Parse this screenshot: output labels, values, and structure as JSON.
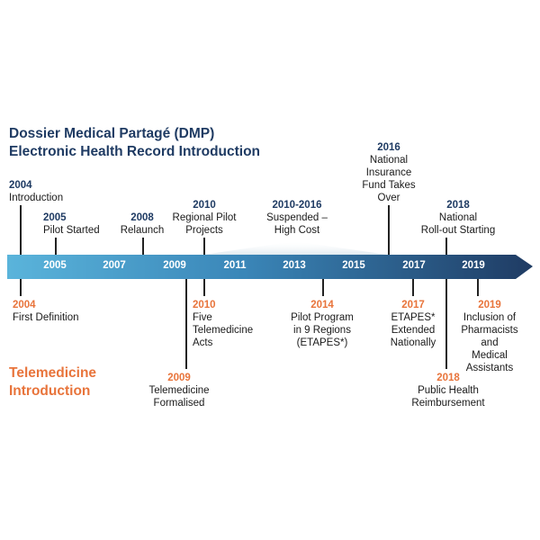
{
  "title": {
    "line1": "Dossier Medical Partagé (DMP)",
    "line2": "Electronic Health Record  Introduction"
  },
  "telemedicine_title": {
    "line1": "Telemedicine",
    "line2": "Introduction"
  },
  "timeline": {
    "years": [
      "2005",
      "2007",
      "2009",
      "2011",
      "2013",
      "2015",
      "2017",
      "2019"
    ],
    "colors": {
      "start": "#5ab4db",
      "end": "#1f3b63",
      "blue_text": "#1f3b63",
      "orange_text": "#e8743b"
    }
  },
  "dmp_events": [
    {
      "year": "2004",
      "text": "Introduction"
    },
    {
      "year": "2005",
      "text": "Pilot Started"
    },
    {
      "year": "2008",
      "text": "Relaunch"
    },
    {
      "year": "2010",
      "text": "Regional Pilot\nProjects"
    },
    {
      "year": "2010-2016",
      "text": "Suspended –\nHigh Cost"
    },
    {
      "year": "2016",
      "text": "National\nInsurance\nFund Takes\nOver"
    },
    {
      "year": "2018",
      "text": "National\nRoll-out Starting"
    }
  ],
  "telemedicine_events": [
    {
      "year": "2004",
      "text": "First Definition"
    },
    {
      "year": "2010",
      "text": "Five\nTelemedicine\nActs"
    },
    {
      "year": "2009",
      "text": "Telemedicine\nFormalised"
    },
    {
      "year": "2014",
      "text": "Pilot Program\nin 9 Regions\n(ETAPES*)"
    },
    {
      "year": "2017",
      "text": "ETAPES*\nExtended\nNationally"
    },
    {
      "year": "2018",
      "text": "Public Health\nReimbursement"
    },
    {
      "year": "2019",
      "text": "Inclusion of\nPharmacists and\nMedical\nAssistants"
    }
  ]
}
